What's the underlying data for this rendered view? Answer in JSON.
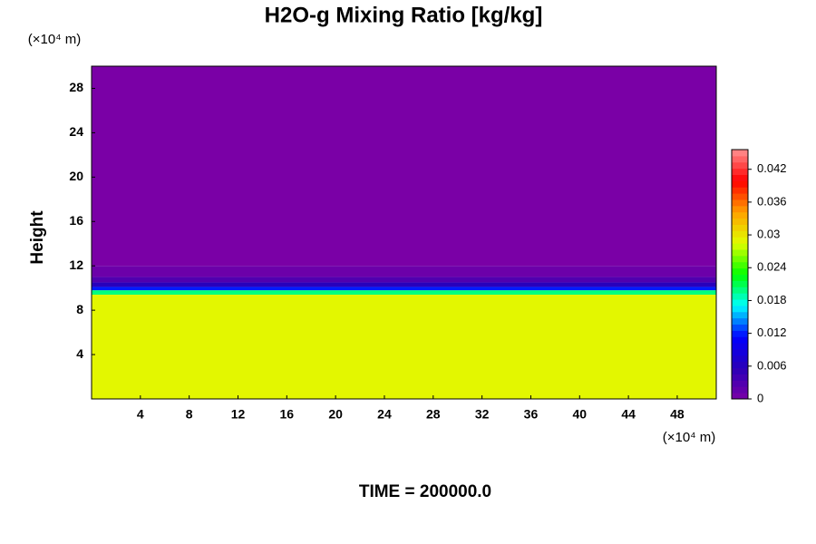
{
  "chart_data": {
    "type": "profile-heatmap",
    "title": "H2O-g Mixing Ratio [kg/kg]",
    "y_unit_label": "(×10⁴ m)",
    "x_unit_label": "(×10⁴ m)",
    "ylabel": "Height",
    "annotation": "TIME = 200000.0",
    "y": [
      0,
      9.4,
      9.8,
      10.1,
      10.5,
      11,
      12,
      30
    ],
    "values": [
      0.029,
      0.02,
      0.012,
      0.006,
      0.003,
      0.001,
      0
    ],
    "xlim": [
      0,
      51.2
    ],
    "xticks": [
      4,
      8,
      12,
      16,
      20,
      24,
      28,
      32,
      36,
      40,
      44,
      48
    ],
    "ylim": [
      0,
      30
    ],
    "yticks": [
      4,
      8,
      12,
      16,
      20,
      24,
      28
    ],
    "clim": [
      0,
      0.0456
    ],
    "cticks": [
      0,
      0.006,
      0.012,
      0.018,
      0.024,
      0.03,
      0.036,
      0.042
    ],
    "colormap": [
      "#7a00a6",
      "#2a00b8",
      "#0000ff",
      "#00ffff",
      "#00ff00",
      "#e0ff00",
      "#ffa000",
      "#ff0000",
      "#ff9090"
    ]
  }
}
